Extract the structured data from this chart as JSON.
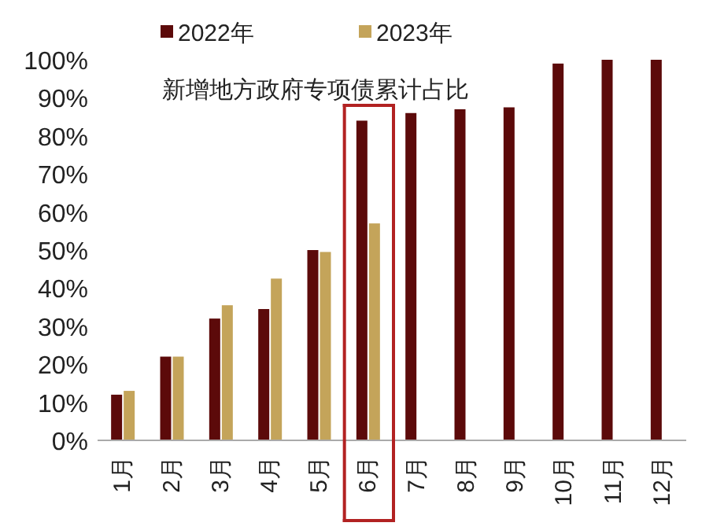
{
  "chart_data": {
    "type": "bar",
    "title": "新增地方政府专项债累计占比",
    "categories": [
      "1月",
      "2月",
      "3月",
      "4月",
      "5月",
      "6月",
      "7月",
      "8月",
      "9月",
      "10月",
      "11月",
      "12月"
    ],
    "series": [
      {
        "name": "2022年",
        "color": "#5c0a0a",
        "values": [
          12,
          22,
          32,
          34.5,
          50,
          84,
          86,
          87,
          87.5,
          99,
          100,
          100
        ]
      },
      {
        "name": "2023年",
        "color": "#c4a45a",
        "values": [
          13,
          22,
          35.5,
          42.5,
          49.5,
          57,
          null,
          null,
          null,
          null,
          null,
          null
        ]
      }
    ],
    "ylim": [
      0,
      100
    ],
    "yticks": [
      {
        "value": 0,
        "label": "0%"
      },
      {
        "value": 10,
        "label": "10%"
      },
      {
        "value": 20,
        "label": "20%"
      },
      {
        "value": 30,
        "label": "30%"
      },
      {
        "value": 40,
        "label": "40%"
      },
      {
        "value": 50,
        "label": "50%"
      },
      {
        "value": 60,
        "label": "60%"
      },
      {
        "value": 70,
        "label": "70%"
      },
      {
        "value": 80,
        "label": "80%"
      },
      {
        "value": 90,
        "label": "90%"
      },
      {
        "value": 100,
        "label": "100%"
      }
    ],
    "legend": "top"
  }
}
